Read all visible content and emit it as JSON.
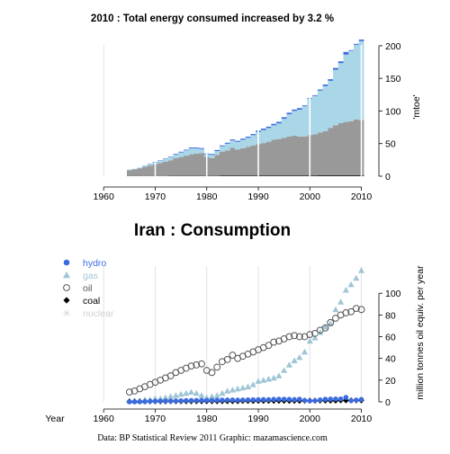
{
  "chart_data": [
    {
      "type": "area",
      "title": "2010 : Total energy consumed increased by 3.2 %",
      "ylabel": "'mtoe'",
      "xlim": [
        1957,
        2012
      ],
      "ylim": [
        0,
        215
      ],
      "x_ticks": [
        1960,
        1970,
        1980,
        1990,
        2000,
        2010
      ],
      "y_ticks": [
        0,
        50,
        100,
        150,
        200
      ],
      "grid": true,
      "stack_order": [
        "coal",
        "oil",
        "gas",
        "nuclear",
        "hydro"
      ],
      "years": [
        1965,
        1966,
        1967,
        1968,
        1969,
        1970,
        1971,
        1972,
        1973,
        1974,
        1975,
        1976,
        1977,
        1978,
        1979,
        1980,
        1981,
        1982,
        1983,
        1984,
        1985,
        1986,
        1987,
        1988,
        1989,
        1990,
        1991,
        1992,
        1993,
        1994,
        1995,
        1996,
        1997,
        1998,
        1999,
        2000,
        2001,
        2002,
        2003,
        2004,
        2005,
        2006,
        2007,
        2008,
        2009,
        2010
      ],
      "series": [
        {
          "name": "coal",
          "color": "#000000",
          "values": [
            0.3,
            0.3,
            0.3,
            0.3,
            0.4,
            0.4,
            0.4,
            0.4,
            0.5,
            0.5,
            0.5,
            0.5,
            0.6,
            0.6,
            0.6,
            0.6,
            0.6,
            0.6,
            0.7,
            0.7,
            0.7,
            0.7,
            0.8,
            0.8,
            0.8,
            0.9,
            0.9,
            0.9,
            1.0,
            1.0,
            1.0,
            1.0,
            1.0,
            1.0,
            1.1,
            1.1,
            1.1,
            1.2,
            1.2,
            1.2,
            1.2,
            1.3,
            1.3,
            1.3,
            1.3,
            1.3
          ]
        },
        {
          "name": "oil",
          "color": "#999999",
          "values": [
            9,
            10,
            12,
            14,
            16,
            18,
            20,
            22,
            24,
            27,
            29,
            31,
            33,
            34,
            35,
            29,
            27,
            32,
            37,
            39,
            43,
            40,
            42,
            44,
            46,
            48,
            50,
            52,
            55,
            56,
            58,
            60,
            61,
            60,
            60,
            62,
            63,
            66,
            68,
            73,
            77,
            80,
            82,
            83,
            86,
            85
          ]
        },
        {
          "name": "gas",
          "color": "#aad7e8",
          "values": [
            1,
            1,
            1,
            2,
            2,
            3,
            3,
            4,
            5,
            6,
            7,
            8,
            9,
            8,
            6,
            4,
            5,
            6,
            8,
            10,
            11,
            12,
            13,
            14,
            16,
            19,
            20,
            21,
            22,
            24,
            29,
            34,
            38,
            41,
            46,
            56,
            59,
            64,
            69,
            72,
            85,
            92,
            103,
            108,
            114,
            121
          ]
        },
        {
          "name": "nuclear",
          "color": "#cccccc",
          "values": [
            0,
            0,
            0,
            0,
            0,
            0,
            0,
            0,
            0,
            0,
            0,
            0,
            0,
            0,
            0,
            0,
            0,
            0,
            0,
            0,
            0,
            0,
            0,
            0,
            0,
            0,
            0,
            0,
            0,
            0,
            0,
            0,
            0,
            0,
            0,
            0,
            0,
            0,
            0,
            0,
            0,
            0,
            0,
            0,
            0,
            0
          ]
        },
        {
          "name": "hydro",
          "color": "#3b6be0",
          "values": [
            0.1,
            0.1,
            0.2,
            0.3,
            0.6,
            0.6,
            0.7,
            0.8,
            0.7,
            0.9,
            1.0,
            1.2,
            1.3,
            1.3,
            1.4,
            1.3,
            1.4,
            1.5,
            1.6,
            1.7,
            1.7,
            1.6,
            1.7,
            1.8,
            1.9,
            2.0,
            2.1,
            2.0,
            2.3,
            2.4,
            2.4,
            2.3,
            2.1,
            2.4,
            1.3,
            0.9,
            1.1,
            1.8,
            2.4,
            2.5,
            2.7,
            2.7,
            4.1,
            1.1,
            1.6,
            2.2
          ]
        }
      ]
    },
    {
      "type": "scatter",
      "title": "Iran :  Consumption",
      "xlabel": "Year",
      "ylabel": "million tonnes oil equiv. per year",
      "xlim": [
        1957,
        2012
      ],
      "ylim": [
        0,
        125
      ],
      "x_ticks": [
        1960,
        1970,
        1980,
        1990,
        2000,
        2010
      ],
      "y_ticks": [
        0,
        20,
        40,
        60,
        80,
        100
      ],
      "grid": true,
      "legend_position": "top-left",
      "legend": [
        {
          "name": "hydro",
          "symbol": "●",
          "color": "#3b6be0"
        },
        {
          "name": "gas",
          "symbol": "▲",
          "color": "#9fc6d6"
        },
        {
          "name": "oil",
          "symbol": "○",
          "color": "#555555"
        },
        {
          "name": "coal",
          "symbol": "◆",
          "color": "#000000"
        },
        {
          "name": "nuclear",
          "symbol": "✳",
          "color": "#cfcfcf"
        }
      ],
      "credit": "Data: BP Statistical Review 2011    Graphic: mazamascience.com"
    }
  ]
}
